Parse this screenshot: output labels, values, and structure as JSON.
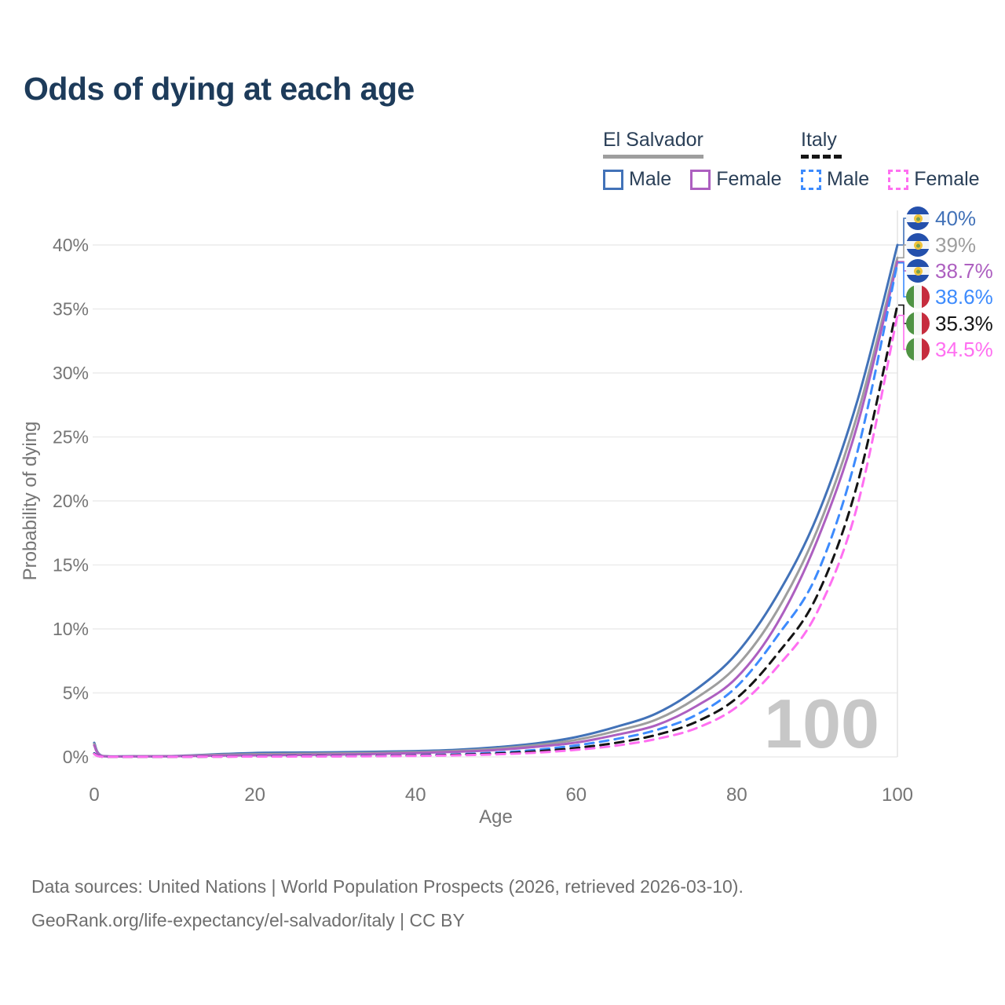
{
  "title": "Odds of dying at each age",
  "legend": {
    "groups": [
      {
        "label": "El Salvador",
        "line_style": "solid",
        "underline_color": "#9e9e9e",
        "items": [
          {
            "label": "Male",
            "color": "#4272b8"
          },
          {
            "label": "Female",
            "color": "#ad5fc0"
          }
        ]
      },
      {
        "label": "Italy",
        "line_style": "dashed",
        "underline_color": "#151515",
        "items": [
          {
            "label": "Male",
            "color": "#3d8bfd"
          },
          {
            "label": "Female",
            "color": "#ff6ff1"
          }
        ]
      }
    ]
  },
  "sources": {
    "line1": "Data sources: United Nations | World Population Prospects (2026, retrieved 2026-03-10).",
    "line2": "GeoRank.org/life-expectancy/el-salvador/italy | CC BY"
  },
  "chart_data": {
    "type": "line",
    "title": "Odds of dying at each age",
    "xlabel": "Age",
    "ylabel": "Probability of dying",
    "xlim": [
      0,
      100
    ],
    "ylim": [
      0,
      40
    ],
    "x_ticks": [
      "0",
      "20",
      "40",
      "60",
      "80",
      "100"
    ],
    "y_ticks": [
      "0%",
      "5%",
      "10%",
      "15%",
      "20%",
      "25%",
      "30%",
      "35%",
      "40%"
    ],
    "grid": "horizontal",
    "legend_position": "top-right",
    "age_marker": "100",
    "ages": [
      0,
      1,
      5,
      10,
      15,
      20,
      25,
      30,
      35,
      40,
      45,
      50,
      55,
      60,
      65,
      70,
      75,
      80,
      85,
      90,
      95,
      100
    ],
    "series": [
      {
        "name": "El Salvador Male",
        "country": "El Salvador",
        "sex": "Male",
        "style": "solid",
        "color": "#4272b8",
        "flag": "sv",
        "end_label": "40%",
        "values": [
          1.1,
          0.08,
          0.05,
          0.07,
          0.2,
          0.31,
          0.34,
          0.36,
          0.4,
          0.45,
          0.55,
          0.75,
          1.05,
          1.55,
          2.35,
          3.4,
          5.3,
          8.1,
          12.6,
          18.8,
          27.8,
          40.0
        ]
      },
      {
        "name": "El Salvador Both sexes",
        "country": "El Salvador",
        "sex": "Both sexes",
        "style": "solid",
        "color": "#9e9e9e",
        "flag": "sv",
        "end_label": "39%",
        "values": [
          1.0,
          0.07,
          0.045,
          0.06,
          0.15,
          0.21,
          0.24,
          0.27,
          0.31,
          0.37,
          0.47,
          0.64,
          0.92,
          1.33,
          2.03,
          2.92,
          4.62,
          7.1,
          11.4,
          17.7,
          26.7,
          39.0
        ]
      },
      {
        "name": "El Salvador Female",
        "country": "El Salvador",
        "sex": "Female",
        "style": "solid",
        "color": "#ad5fc0",
        "flag": "sv",
        "end_label": "38.7%",
        "values": [
          0.9,
          0.06,
          0.04,
          0.05,
          0.1,
          0.12,
          0.15,
          0.18,
          0.23,
          0.3,
          0.4,
          0.54,
          0.79,
          1.12,
          1.72,
          2.48,
          3.98,
          6.2,
          10.4,
          16.9,
          25.9,
          38.7
        ]
      },
      {
        "name": "Italy Male",
        "country": "Italy",
        "sex": "Male",
        "style": "dashed",
        "color": "#3d8bfd",
        "flag": "it",
        "end_label": "38.6%",
        "values": [
          0.28,
          0.02,
          0.01,
          0.012,
          0.03,
          0.05,
          0.06,
          0.07,
          0.09,
          0.13,
          0.2,
          0.33,
          0.55,
          0.9,
          1.4,
          2.1,
          3.3,
          5.5,
          9.4,
          14.3,
          23.8,
          38.6
        ]
      },
      {
        "name": "Italy Both sexes",
        "country": "Italy",
        "sex": "Both sexes",
        "style": "dashed",
        "color": "#141414",
        "flag": "it",
        "end_label": "35.3%",
        "values": [
          0.25,
          0.018,
          0.009,
          0.011,
          0.022,
          0.035,
          0.045,
          0.055,
          0.072,
          0.105,
          0.16,
          0.26,
          0.43,
          0.7,
          1.1,
          1.72,
          2.75,
          4.6,
          8.0,
          12.6,
          21.3,
          35.3
        ]
      },
      {
        "name": "Italy Female",
        "country": "Italy",
        "sex": "Female",
        "style": "dashed",
        "color": "#ff6ff1",
        "flag": "it",
        "end_label": "34.5%",
        "values": [
          0.22,
          0.016,
          0.008,
          0.009,
          0.015,
          0.022,
          0.028,
          0.04,
          0.055,
          0.08,
          0.12,
          0.2,
          0.33,
          0.55,
          0.88,
          1.4,
          2.25,
          3.9,
          7.0,
          11.3,
          19.6,
          34.5
        ]
      }
    ],
    "colors": {
      "grid": "#ececec",
      "axis_text": "#757575",
      "title_text": "#1d3b5a",
      "watermark": "#c7c7c7"
    }
  }
}
